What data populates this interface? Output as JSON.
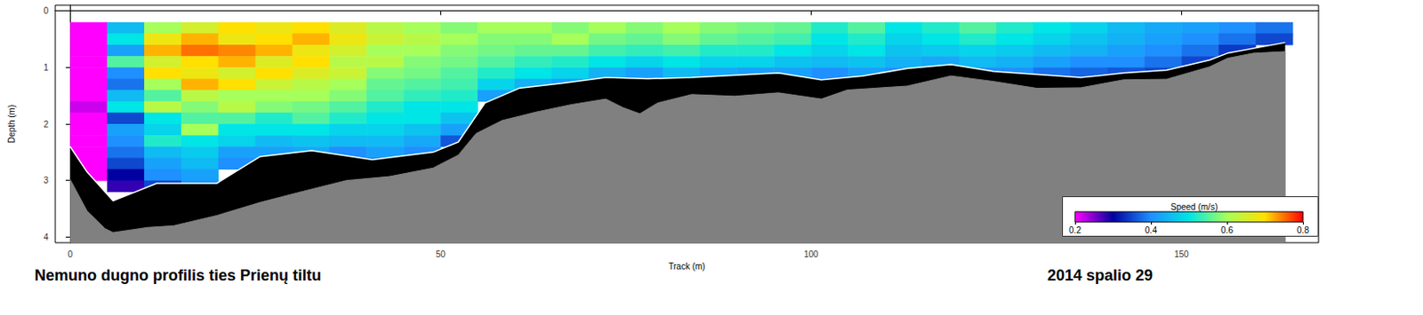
{
  "chart_data": {
    "type": "heatmap",
    "title": "Nemuno dugno profilis ties Prienų tiltu",
    "subtitle": "2014 spalio 29",
    "x_label": "Track (m)",
    "y_label": "Depth (m)",
    "xlim": [
      -2,
      168.5
    ],
    "xticks": [
      0,
      50,
      100,
      150
    ],
    "ylim": [
      -0.1,
      4.1
    ],
    "yticks": [
      0,
      1,
      2,
      3,
      4
    ],
    "grid": false,
    "x": [
      2.5,
      7.5,
      12.5,
      17.5,
      22.5,
      27.5,
      32.5,
      37.5,
      42.5,
      47.5,
      52.5,
      57.5,
      62.5,
      67.5,
      72.5,
      77.5,
      82.5,
      87.5,
      92.5,
      97.5,
      102.5,
      107.5,
      112.5,
      117.5,
      122.5,
      127.5,
      132.5,
      137.5,
      142.5,
      147.5,
      152.5,
      157.5,
      162.5
    ],
    "depth": [
      0.3,
      0.5,
      0.7,
      0.9,
      1.1,
      1.3,
      1.5,
      1.7,
      1.9,
      2.1,
      2.3,
      2.5,
      2.7,
      2.9,
      3.1,
      3.3
    ],
    "speed": [
      [
        0.2,
        0.2,
        0.2,
        0.2,
        0.2,
        0.2,
        0.2,
        0.22,
        0.2,
        0.2,
        0.2,
        0.2,
        0.2,
        0.2,
        null,
        null
      ],
      [
        0.45,
        0.5,
        0.42,
        0.55,
        0.4,
        0.38,
        0.45,
        0.5,
        0.35,
        0.42,
        0.4,
        0.38,
        0.35,
        0.3,
        0.28,
        null
      ],
      [
        0.6,
        0.68,
        0.72,
        0.65,
        0.7,
        0.6,
        0.55,
        0.62,
        0.5,
        0.48,
        0.52,
        0.45,
        0.42,
        0.4,
        0.35,
        null
      ],
      [
        0.65,
        0.72,
        0.75,
        0.7,
        0.68,
        0.72,
        0.62,
        0.58,
        0.55,
        0.6,
        0.5,
        0.47,
        0.45,
        0.42,
        0.4,
        null
      ],
      [
        0.7,
        0.68,
        0.74,
        0.72,
        0.65,
        0.7,
        0.6,
        0.62,
        0.55,
        0.5,
        0.48,
        0.42,
        0.4,
        null,
        null,
        null
      ],
      [
        0.68,
        0.7,
        0.72,
        0.66,
        0.7,
        0.64,
        0.6,
        0.58,
        0.52,
        0.5,
        0.45,
        0.42,
        null,
        null,
        null,
        null
      ],
      [
        0.7,
        0.72,
        0.68,
        0.7,
        0.66,
        0.62,
        0.6,
        0.57,
        0.55,
        0.5,
        0.46,
        0.43,
        null,
        null,
        null,
        null
      ],
      [
        0.66,
        0.68,
        0.65,
        0.62,
        0.64,
        0.6,
        0.58,
        0.55,
        0.52,
        0.48,
        0.45,
        0.4,
        null,
        null,
        null,
        null
      ],
      [
        0.62,
        0.64,
        0.6,
        0.62,
        0.58,
        0.56,
        0.55,
        0.52,
        0.5,
        0.48,
        0.45,
        0.42,
        0.38,
        null,
        null,
        null
      ],
      [
        0.6,
        0.62,
        0.6,
        0.58,
        0.57,
        0.55,
        0.53,
        0.5,
        0.5,
        0.46,
        0.43,
        0.4,
        null,
        null,
        null,
        null
      ],
      [
        0.58,
        0.6,
        0.58,
        0.57,
        0.55,
        0.54,
        0.52,
        0.5,
        0.46,
        0.42,
        0.36,
        null,
        null,
        null,
        null,
        null
      ],
      [
        0.6,
        0.58,
        0.57,
        0.55,
        0.52,
        0.48,
        0.42,
        null,
        null,
        null,
        null,
        null,
        null,
        null,
        null,
        null
      ],
      [
        0.6,
        0.58,
        0.56,
        0.53,
        0.5,
        0.44,
        null,
        null,
        null,
        null,
        null,
        null,
        null,
        null,
        null,
        null
      ],
      [
        0.58,
        0.6,
        0.56,
        0.52,
        0.48,
        0.42,
        null,
        null,
        null,
        null,
        null,
        null,
        null,
        null,
        null,
        null
      ],
      [
        0.6,
        0.57,
        0.54,
        0.5,
        0.44,
        null,
        null,
        null,
        null,
        null,
        null,
        null,
        null,
        null,
        null,
        null
      ],
      [
        0.58,
        0.56,
        0.53,
        0.48,
        0.42,
        null,
        null,
        null,
        null,
        null,
        null,
        null,
        null,
        null,
        null,
        null
      ],
      [
        0.6,
        0.58,
        0.54,
        0.5,
        0.45,
        null,
        null,
        null,
        null,
        null,
        null,
        null,
        null,
        null,
        null,
        null
      ],
      [
        0.58,
        0.56,
        0.52,
        0.48,
        0.43,
        null,
        null,
        null,
        null,
        null,
        null,
        null,
        null,
        null,
        null,
        null
      ],
      [
        0.57,
        0.55,
        0.52,
        0.48,
        0.42,
        null,
        null,
        null,
        null,
        null,
        null,
        null,
        null,
        null,
        null,
        null
      ],
      [
        0.56,
        0.54,
        0.5,
        0.46,
        0.42,
        null,
        null,
        null,
        null,
        null,
        null,
        null,
        null,
        null,
        null,
        null
      ],
      [
        0.52,
        0.5,
        0.48,
        0.45,
        0.4,
        null,
        null,
        null,
        null,
        null,
        null,
        null,
        null,
        null,
        null,
        null
      ],
      [
        0.55,
        0.52,
        0.5,
        0.46,
        0.42,
        null,
        null,
        null,
        null,
        null,
        null,
        null,
        null,
        null,
        null,
        null
      ],
      [
        0.5,
        0.48,
        0.46,
        0.44,
        0.4,
        null,
        null,
        null,
        null,
        null,
        null,
        null,
        null,
        null,
        null,
        null
      ],
      [
        0.52,
        0.5,
        0.47,
        0.43,
        null,
        null,
        null,
        null,
        null,
        null,
        null,
        null,
        null,
        null,
        null,
        null
      ],
      [
        0.55,
        0.52,
        0.48,
        0.45,
        0.4,
        null,
        null,
        null,
        null,
        null,
        null,
        null,
        null,
        null,
        null,
        null
      ],
      [
        0.52,
        0.5,
        0.47,
        0.44,
        0.4,
        null,
        null,
        null,
        null,
        null,
        null,
        null,
        null,
        null,
        null,
        null
      ],
      [
        0.5,
        0.48,
        0.45,
        0.42,
        0.38,
        null,
        null,
        null,
        null,
        null,
        null,
        null,
        null,
        null,
        null,
        null
      ],
      [
        0.48,
        0.46,
        0.44,
        0.4,
        0.37,
        null,
        null,
        null,
        null,
        null,
        null,
        null,
        null,
        null,
        null,
        null
      ],
      [
        0.45,
        0.44,
        0.42,
        0.4,
        0.36,
        null,
        null,
        null,
        null,
        null,
        null,
        null,
        null,
        null,
        null,
        null
      ],
      [
        0.43,
        0.42,
        0.4,
        0.38,
        0.35,
        null,
        null,
        null,
        null,
        null,
        null,
        null,
        null,
        null,
        null,
        null
      ],
      [
        0.42,
        0.4,
        0.38,
        0.35,
        null,
        null,
        null,
        null,
        null,
        null,
        null,
        null,
        null,
        null,
        null,
        null
      ],
      [
        0.4,
        0.38,
        0.34,
        null,
        null,
        null,
        null,
        null,
        null,
        null,
        null,
        null,
        null,
        null,
        null,
        null
      ],
      [
        0.38,
        0.35,
        null,
        null,
        null,
        null,
        null,
        null,
        null,
        null,
        null,
        null,
        null,
        null,
        null,
        null
      ]
    ],
    "measured_limit": {
      "x": [
        0,
        2.3,
        5.8,
        11.7,
        19.8,
        25.6,
        32.6,
        40.8,
        49,
        52.4,
        56,
        60.6,
        66.4,
        72.3,
        78,
        83.9,
        95.6,
        101.4,
        107,
        113,
        118.9,
        124.7,
        136.4,
        142.2,
        148,
        153.8,
        156.2,
        164
      ],
      "depth": [
        2.4,
        2.85,
        3.36,
        3.05,
        3.05,
        2.58,
        2.47,
        2.63,
        2.5,
        2.32,
        1.63,
        1.37,
        1.28,
        1.18,
        1.2,
        1.18,
        1.1,
        1.22,
        1.15,
        1.02,
        0.95,
        1.07,
        1.18,
        1.1,
        1.05,
        0.87,
        0.75,
        0.56
      ]
    },
    "bottom": {
      "x": [
        0,
        2.3,
        4.7,
        5.8,
        10.5,
        14,
        19.8,
        25.6,
        31.5,
        37.3,
        43.1,
        49,
        52.4,
        54.8,
        58.3,
        62.9,
        67.6,
        72.3,
        74.6,
        76.9,
        79.3,
        83.9,
        89.7,
        95.6,
        101.4,
        104.9,
        113,
        118.9,
        124.7,
        130.5,
        136.4,
        142.2,
        148,
        153.8,
        156.2,
        159.7,
        164
      ],
      "depth": [
        2.98,
        3.54,
        3.85,
        3.92,
        3.83,
        3.8,
        3.62,
        3.39,
        3.19,
        3.0,
        2.93,
        2.78,
        2.55,
        2.17,
        1.94,
        1.79,
        1.66,
        1.56,
        1.71,
        1.82,
        1.63,
        1.48,
        1.51,
        1.45,
        1.56,
        1.4,
        1.33,
        1.15,
        1.25,
        1.37,
        1.36,
        1.22,
        1.21,
        0.99,
        0.84,
        0.75,
        0.72
      ]
    },
    "colorbar": {
      "title": "Speed (m/s)",
      "range": [
        0.2,
        0.8
      ],
      "ticks": [
        0.2,
        0.4,
        0.6,
        0.8
      ],
      "colors": [
        "#ff00ff",
        "#0000a0",
        "#1e90ff",
        "#00e5e5",
        "#a6ff5a",
        "#ffe000",
        "#ff0000"
      ]
    }
  }
}
